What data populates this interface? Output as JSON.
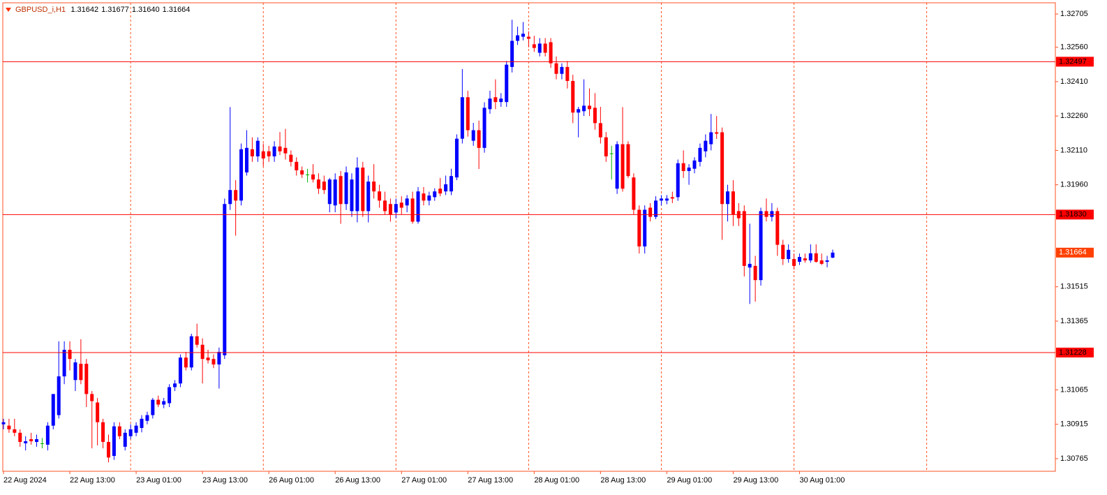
{
  "chart_data": {
    "type": "candlestick",
    "title": "GBPUSD_i,H1",
    "header_values": [
      1.31642,
      1.31677,
      {
        "value": 1.3164,
        "label": "1.31640"
      },
      1.31664
    ],
    "categories": [
      "22 Aug 2024",
      null,
      null,
      null,
      null,
      null,
      null,
      null,
      null,
      null,
      null,
      null,
      "22 Aug 13:00",
      null,
      null,
      null,
      null,
      null,
      null,
      null,
      null,
      null,
      null,
      null,
      "23 Aug 01:00",
      null,
      null,
      null,
      null,
      null,
      null,
      null,
      null,
      null,
      null,
      null,
      "23 Aug 13:00",
      null,
      null,
      null,
      null,
      null,
      null,
      null,
      null,
      null,
      null,
      null,
      "26 Aug 01:00",
      null,
      null,
      null,
      null,
      null,
      null,
      null,
      null,
      null,
      null,
      null,
      "26 Aug 13:00",
      null,
      null,
      null,
      null,
      null,
      null,
      null,
      null,
      null,
      null,
      null,
      "27 Aug 01:00",
      null,
      null,
      null,
      null,
      null,
      null,
      null,
      null,
      null,
      null,
      null,
      "27 Aug 13:00",
      null,
      null,
      null,
      null,
      null,
      null,
      null,
      null,
      null,
      null,
      null,
      "28 Aug 01:00",
      null,
      null,
      null,
      null,
      null,
      null,
      null,
      null,
      null,
      null,
      null,
      "28 Aug 13:00",
      null,
      null,
      null,
      null,
      null,
      null,
      null,
      null,
      null,
      null,
      null,
      "29 Aug 01:00",
      null,
      null,
      null,
      null,
      null,
      null,
      null,
      null,
      null,
      null,
      null,
      "29 Aug 13:00",
      null,
      null,
      null,
      null,
      null,
      null,
      null,
      null,
      null,
      null,
      null,
      "30 Aug 01:00",
      null,
      null,
      null,
      null,
      null,
      null
    ],
    "open": [
      1.30915,
      1.30909,
      1.30893,
      1.30878,
      1.30832,
      1.3085,
      1.30838,
      1.30832,
      1.30826,
      1.30909,
      1.30955,
      1.31124,
      1.3124,
      1.31108,
      1.31179,
      1.31179,
      1.31047,
      1.3101,
      1.30924,
      1.30838,
      1.30777,
      1.30906,
      1.30817,
      1.30863,
      1.30878,
      1.30899,
      1.3093,
      1.30955,
      1.31022,
      1.31001,
      1.31007,
      1.31077,
      1.31093,
      1.31206,
      1.31163,
      1.31299,
      1.31262,
      1.31206,
      1.312,
      1.31176,
      1.31216,
      1.31876,
      1.31937,
      1.31891,
      1.32014,
      1.32115,
      1.32084,
      1.32106,
      1.32106,
      1.32084,
      1.32127,
      1.32121,
      1.32091,
      1.3206,
      1.32023,
      1.32005,
      1.32005,
      1.31983,
      1.31974,
      1.31876,
      1.3187,
      1.31998,
      1.31876,
      1.31845,
      1.31845,
      1.32035,
      1.31845,
      1.31974,
      1.31931,
      1.31891,
      1.31876,
      1.31839,
      1.31882,
      1.3187,
      1.319,
      1.31799,
      1.31922,
      1.31891,
      1.31906,
      1.31943,
      1.31931,
      1.31931,
      1.31992,
      1.32161,
      1.32342,
      1.32152,
      1.32198,
      1.32121,
      1.3229,
      1.32342,
      1.32321,
      1.32321,
      1.32474,
      1.32588,
      1.32606,
      1.32606,
      1.32573,
      1.32536,
      1.32576,
      1.32582,
      1.3249,
      1.32444,
      1.32474,
      1.32413,
      1.32275,
      1.32281,
      1.32305,
      1.32296,
      1.32229,
      1.32167,
      1.32097,
      1.31943,
      1.32137,
      1.32137,
      1.31992,
      1.31851,
      1.31691,
      1.3186,
      1.3182,
      1.31891,
      1.31891,
      1.31906,
      1.31906,
      1.32054,
      1.3202,
      1.3203,
      1.3206,
      1.32106,
      1.32137,
      1.32189,
      1.32189,
      1.31876,
      1.31931,
      1.31845,
      1.31845,
      1.31599,
      1.31606,
      1.31544,
      1.31845,
      1.3182,
      1.31845,
      1.31698,
      1.31636,
      1.31636,
      1.31624,
      1.31639,
      1.3163,
      1.31661,
      1.3163,
      1.31624,
      1.31642
    ],
    "high": [
      1.30939,
      1.30939,
      1.30939,
      1.30893,
      1.30863,
      1.30878,
      1.3087,
      1.30855,
      1.30924,
      1.31047,
      1.31277,
      1.31277,
      1.31277,
      1.312,
      1.31286,
      1.312,
      1.3106,
      1.3103,
      1.30939,
      1.3087,
      1.30924,
      1.30924,
      1.30893,
      1.30915,
      1.30924,
      1.30955,
      1.3097,
      1.3103,
      1.3104,
      1.3103,
      1.3109,
      1.31108,
      1.3122,
      1.31231,
      1.3131,
      1.31354,
      1.3129,
      1.3124,
      1.3122,
      1.3125,
      1.319,
      1.32299,
      1.3198,
      1.3214,
      1.32198,
      1.32167,
      1.32167,
      1.3214,
      1.3213,
      1.3215,
      1.3219,
      1.32204,
      1.3211,
      1.3208,
      1.3204,
      1.3203,
      1.3205,
      1.3201,
      1.32,
      1.3199,
      1.3201,
      1.3202,
      1.3204,
      1.3201,
      1.3208,
      1.3206,
      1.32,
      1.3205,
      1.3196,
      1.3193,
      1.319,
      1.319,
      1.3191,
      1.31915,
      1.3193,
      1.3195,
      1.3195,
      1.3193,
      1.31945,
      1.3199,
      1.32,
      1.3203,
      1.3218,
      1.32465,
      1.3237,
      1.3223,
      1.3224,
      1.3232,
      1.3237,
      1.3242,
      1.3236,
      1.325,
      1.3268,
      1.3265,
      1.3267,
      1.3263,
      1.3261,
      1.326,
      1.326,
      1.326,
      1.3252,
      1.3249,
      1.325,
      1.3244,
      1.323,
      1.3242,
      1.3238,
      1.3236,
      1.323,
      1.3219,
      1.3213,
      1.3215,
      1.32299,
      1.3215,
      1.3201,
      1.3187,
      1.3187,
      1.3188,
      1.3191,
      1.31915,
      1.31915,
      1.3193,
      1.3207,
      1.3211,
      1.3205,
      1.3208,
      1.3214,
      1.3218,
      1.32269,
      1.3226,
      1.3221,
      1.3196,
      1.3198,
      1.3188,
      1.3187,
      1.3179,
      1.3165,
      1.3186,
      1.319,
      1.3188,
      1.3186,
      1.3172,
      1.317,
      1.3166,
      1.3166,
      1.3166,
      1.317,
      1.317,
      1.3166,
      1.3165,
      1.31677
    ],
    "low": [
      1.30893,
      1.30878,
      1.30863,
      1.30817,
      1.30801,
      1.30826,
      1.30817,
      1.3081,
      1.30801,
      1.30893,
      1.3094,
      1.3109,
      1.3115,
      1.3106,
      1.3109,
      1.3099,
      1.3081,
      1.30823,
      1.3081,
      1.30749,
      1.3076,
      1.3085,
      1.30801,
      1.3085,
      1.30863,
      1.3088,
      1.30915,
      1.3094,
      1.3099,
      1.30985,
      1.3099,
      1.3106,
      1.31077,
      1.3115,
      1.3115,
      1.3125,
      1.31093,
      1.3118,
      1.3116,
      1.31071,
      1.312,
      1.3185,
      1.31738,
      1.3187,
      1.32,
      1.3206,
      1.3206,
      1.3204,
      1.3206,
      1.3206,
      1.3209,
      1.3207,
      1.3204,
      1.32,
      1.3199,
      1.3197,
      1.3197,
      1.3192,
      1.3192,
      1.3184,
      1.3184,
      1.3179,
      1.3185,
      1.3182,
      1.31796,
      1.3182,
      1.31796,
      1.319,
      1.3186,
      1.3183,
      1.31799,
      1.31815,
      1.3183,
      1.3184,
      1.3179,
      1.3179,
      1.3187,
      1.3187,
      1.3189,
      1.3191,
      1.31915,
      1.31915,
      1.3198,
      1.3214,
      1.3217,
      1.3213,
      1.32029,
      1.321,
      1.3227,
      1.3229,
      1.323,
      1.323,
      1.3245,
      1.3257,
      1.3259,
      1.3256,
      1.3254,
      1.3252,
      1.3252,
      1.3247,
      1.3242,
      1.3242,
      1.3238,
      1.32229,
      1.32167,
      1.3226,
      1.3226,
      1.322,
      1.3214,
      1.3206,
      1.31983,
      1.3192,
      1.3193,
      1.3199,
      1.3183,
      1.3166,
      1.3166,
      1.318,
      1.3181,
      1.3187,
      1.31875,
      1.3188,
      1.3189,
      1.3199,
      1.3196,
      1.3201,
      1.3204,
      1.3208,
      1.3211,
      1.3216,
      1.3172,
      1.318,
      1.3178,
      1.3178,
      1.3156,
      1.3144,
      1.3145,
      1.3152,
      1.318,
      1.318,
      1.3165,
      1.3161,
      1.3162,
      1.3159,
      1.3161,
      1.3162,
      1.3162,
      1.3162,
      1.3161,
      1.316,
      1.3164
    ],
    "close": [
      1.30924,
      1.30893,
      1.30878,
      1.30838,
      1.30841,
      1.30841,
      1.3085,
      1.30832,
      1.30909,
      1.31047,
      1.31124,
      1.3124,
      1.312,
      1.31185,
      1.31108,
      1.31047,
      1.31016,
      1.30924,
      1.30838,
      1.3077,
      1.30906,
      1.30863,
      1.30878,
      1.30893,
      1.30909,
      1.30939,
      1.30955,
      1.31022,
      1.31001,
      1.31016,
      1.31077,
      1.31093,
      1.31206,
      1.31163,
      1.31299,
      1.31262,
      1.312,
      1.31194,
      1.31176,
      1.31231,
      1.31876,
      1.31937,
      1.31891,
      1.32115,
      1.32121,
      1.32084,
      1.32152,
      1.32075,
      1.32084,
      1.32127,
      1.32106,
      1.32097,
      1.3206,
      1.32023,
      1.32005,
      1.32005,
      1.31983,
      1.31943,
      1.31937,
      1.31983,
      1.31983,
      1.31876,
      1.32014,
      1.31983,
      1.32035,
      1.31845,
      1.31974,
      1.31931,
      1.31891,
      1.31845,
      1.3183,
      1.31876,
      1.3186,
      1.319,
      1.31799,
      1.31931,
      1.31891,
      1.31913,
      1.31931,
      1.31922,
      1.31962,
      1.31998,
      1.32161,
      1.32342,
      1.32198,
      1.32198,
      1.32121,
      1.32296,
      1.32336,
      1.32321,
      1.32336,
      1.32484,
      1.32588,
      1.32612,
      1.32619,
      1.32597,
      1.32557,
      1.32576,
      1.32536,
      1.3249,
      1.32444,
      1.32474,
      1.32413,
      1.32275,
      1.3229,
      1.32305,
      1.3229,
      1.32229,
      1.32167,
      1.32084,
      1.32097,
      1.32137,
      1.31943,
      1.31998,
      1.31851,
      1.31691,
      1.31851,
      1.3182,
      1.31891,
      1.319,
      1.319,
      1.319,
      1.32054,
      1.3202,
      1.32035,
      1.32066,
      1.32121,
      1.32152,
      1.32189,
      1.32183,
      1.31876,
      1.31931,
      1.3183,
      1.31814,
      1.31606,
      1.31615,
      1.31544,
      1.31845,
      1.3182,
      1.31845,
      1.31698,
      1.31636,
      1.31676,
      1.31606,
      1.31645,
      1.3163,
      1.31661,
      1.31624,
      1.31615,
      1.3163,
      1.31664
    ],
    "up_color": "#0000ff",
    "down_color": "#ff0000",
    "doji_color": "#00b000",
    "ylim": [
      1.3071,
      1.32754
    ],
    "yticks": [
      1.32705,
      {
        "value": 1.3256,
        "label": "1.32560"
      },
      {
        "value": 1.3241,
        "label": "1.32410"
      },
      {
        "value": 1.3226,
        "label": "1.32260"
      },
      {
        "value": 1.3211,
        "label": "1.32110"
      },
      {
        "value": 1.3196,
        "label": "1.31960"
      },
      1.31515,
      1.31365,
      1.31065,
      1.30915,
      1.30765
    ],
    "hlines": [
      1.32497,
      {
        "value": 1.3183,
        "label": "1.31830"
      },
      1.31228
    ],
    "hline_color": "#ff0000",
    "bid": 1.31664,
    "bid_color": "#ff4000"
  }
}
